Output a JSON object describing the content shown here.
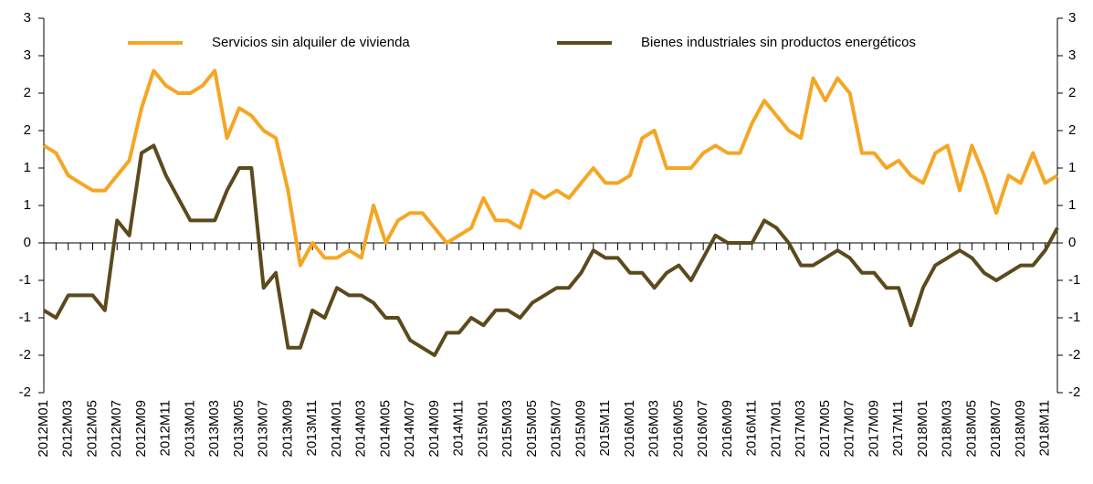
{
  "chart_data": {
    "type": "line",
    "categories": [
      "2012M01",
      null,
      "2012M03",
      null,
      "2012M05",
      null,
      "2012M07",
      null,
      "2012M09",
      null,
      "2012M11",
      null,
      "2013M01",
      null,
      "2013M03",
      null,
      "2013M05",
      null,
      "2013M07",
      null,
      "2013M09",
      null,
      "2013M11",
      null,
      "2014M01",
      null,
      "2014M03",
      null,
      "2014M05",
      null,
      "2014M07",
      null,
      "2014M09",
      null,
      "2014M11",
      null,
      "2015M01",
      null,
      "2015M03",
      null,
      "2015M05",
      null,
      "2015M07",
      null,
      "2015M09",
      null,
      "2015M11",
      null,
      "2016M01",
      null,
      "2016M03",
      null,
      "2016M05",
      null,
      "2016M07",
      null,
      "2016M09",
      null,
      "2016M11",
      null,
      "2017M01",
      null,
      "2017M03",
      null,
      "2017M05",
      null,
      "2017M07",
      null,
      "2017M09",
      null,
      "2017M11",
      null,
      "2018M01",
      null,
      "2018M03",
      null,
      "2018M05",
      null,
      "2018M07",
      null,
      "2018M09",
      null,
      "2018M11",
      null
    ],
    "series": [
      {
        "name": "Servicios sin alquiler de vivienda",
        "color": "#f5a623",
        "values": [
          1.3,
          1.2,
          0.9,
          0.8,
          0.7,
          0.7,
          0.9,
          1.1,
          1.8,
          2.3,
          2.1,
          2.0,
          2.0,
          2.1,
          2.3,
          1.4,
          1.8,
          1.7,
          1.5,
          1.4,
          0.7,
          -0.3,
          0,
          -0.2,
          -0.2,
          -0.1,
          -0.2,
          0.5,
          0,
          0.3,
          0.4,
          0.4,
          0.2,
          0,
          0.1,
          0.2,
          0.6,
          0.3,
          0.3,
          0.2,
          0.7,
          0.6,
          0.7,
          0.6,
          0.8,
          1.0,
          0.8,
          0.8,
          0.9,
          1.4,
          1.5,
          1.0,
          1.0,
          1.0,
          1.2,
          1.3,
          1.2,
          1.2,
          1.6,
          1.9,
          1.7,
          1.5,
          1.4,
          2.2,
          1.9,
          2.2,
          2.0,
          1.2,
          1.2,
          1.0,
          1.1,
          0.9,
          0.8,
          1.2,
          1.3,
          0.7,
          1.3,
          0.9,
          0.4,
          0.9,
          0.8,
          1.2,
          0.8,
          0.9
        ]
      },
      {
        "name": "Bienes industriales sin productos energéticos",
        "color": "#5c4a1e",
        "values": [
          -0.9,
          -1.0,
          -0.7,
          -0.7,
          -0.7,
          -0.9,
          0.3,
          0.1,
          1.2,
          1.3,
          0.9,
          0.6,
          0.3,
          0.3,
          0.3,
          0.7,
          1.0,
          1.0,
          -0.6,
          -0.4,
          -1.4,
          -1.4,
          -0.9,
          -1.0,
          -0.6,
          -0.7,
          -0.7,
          -0.8,
          -1.0,
          -1.0,
          -1.3,
          -1.4,
          -1.5,
          -1.2,
          -1.2,
          -1.0,
          -1.1,
          -0.9,
          -0.9,
          -1.0,
          -0.8,
          -0.7,
          -0.6,
          -0.6,
          -0.4,
          -0.1,
          -0.2,
          -0.2,
          -0.4,
          -0.4,
          -0.6,
          -0.4,
          -0.3,
          -0.5,
          -0.2,
          0.1,
          0,
          0,
          0,
          0.3,
          0.2,
          0,
          -0.3,
          -0.3,
          -0.2,
          -0.1,
          -0.2,
          -0.4,
          -0.4,
          -0.6,
          -0.6,
          -1.1,
          -0.6,
          -0.3,
          -0.2,
          -0.1,
          -0.2,
          -0.4,
          -0.5,
          -0.4,
          -0.3,
          -0.3,
          -0.1,
          0.2
        ]
      }
    ],
    "ylim": [
      -2,
      3
    ],
    "yticks": [
      {
        "value": -2,
        "label": "-2"
      },
      {
        "value": -1.5,
        "label": "-2"
      },
      {
        "value": -1,
        "label": "-1"
      },
      {
        "value": -0.5,
        "label": "-1"
      },
      0,
      {
        "value": 0.5,
        "label": "1"
      },
      1,
      {
        "value": 1.5,
        "label": "2"
      },
      2,
      {
        "value": 2.5,
        "label": "3"
      },
      3
    ],
    "y2lim": [
      -2,
      3
    ],
    "y2ticks": [
      {
        "value": -2,
        "label": "-2"
      },
      {
        "value": -1.5,
        "label": "-2"
      },
      {
        "value": -1,
        "label": "-1"
      },
      {
        "value": -0.5,
        "label": "-1"
      },
      0,
      {
        "value": 0.5,
        "label": "1"
      },
      1,
      {
        "value": 1.5,
        "label": "2"
      },
      2,
      {
        "value": 2.5,
        "label": "3"
      },
      3
    ],
    "legend": "top"
  }
}
